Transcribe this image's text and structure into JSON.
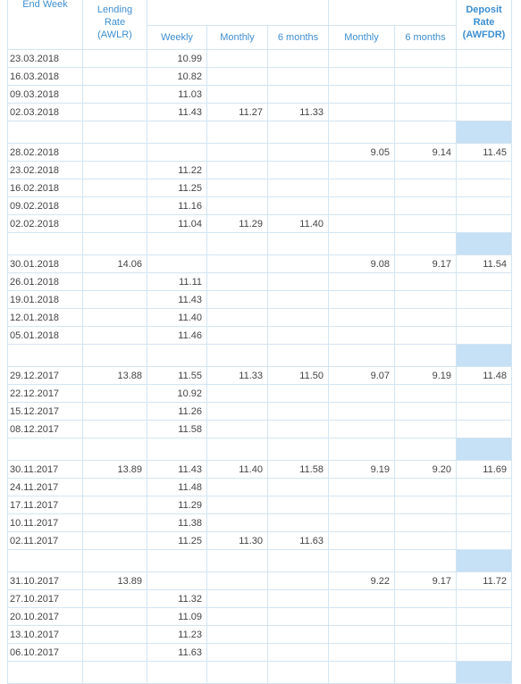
{
  "table": {
    "header": [
      "End Week",
      "Lending Rate (AWLR)",
      "Weekly",
      "Monthly",
      "6 months",
      "Monthly",
      "6 months",
      "Deposit Rate (AWFDR)"
    ],
    "groups": [
      {
        "rows": [
          [
            "23.03.2018",
            null,
            "10.99",
            null,
            null,
            null,
            null,
            null
          ],
          [
            "16.03.2018",
            null,
            "10.82",
            null,
            null,
            null,
            null,
            null
          ],
          [
            "09.03.2018",
            null,
            "11.03",
            null,
            null,
            null,
            null,
            null
          ],
          [
            "02.03.2018",
            null,
            "11.43",
            "11.27",
            "11.33",
            null,
            null,
            null
          ]
        ]
      },
      {
        "rows": [
          [
            "28.02.2018",
            null,
            null,
            null,
            null,
            "9.05",
            "9.14",
            "11.45"
          ],
          [
            "23.02.2018",
            null,
            "11.22",
            null,
            null,
            null,
            null,
            null
          ],
          [
            "16.02.2018",
            null,
            "11.25",
            null,
            null,
            null,
            null,
            null
          ],
          [
            "09.02.2018",
            null,
            "11.16",
            null,
            null,
            null,
            null,
            null
          ],
          [
            "02.02.2018",
            null,
            "11.04",
            "11.29",
            "11.40",
            null,
            null,
            null
          ]
        ]
      },
      {
        "rows": [
          [
            "30.01.2018",
            "14.06",
            null,
            null,
            null,
            "9.08",
            "9.17",
            "11.54"
          ],
          [
            "26.01.2018",
            null,
            "11.11",
            null,
            null,
            null,
            null,
            null
          ],
          [
            "19.01.2018",
            null,
            "11.43",
            null,
            null,
            null,
            null,
            null
          ],
          [
            "12.01.2018",
            null,
            "11.40",
            null,
            null,
            null,
            null,
            null
          ],
          [
            "05.01.2018",
            null,
            "11.46",
            null,
            null,
            null,
            null,
            null
          ]
        ]
      },
      {
        "rows": [
          [
            "29.12.2017",
            "13.88",
            "11.55",
            "11.33",
            "11.50",
            "9.07",
            "9.19",
            "11.48"
          ],
          [
            "22.12.2017",
            null,
            "10.92",
            null,
            null,
            null,
            null,
            null
          ],
          [
            "15.12.2017",
            null,
            "11.26",
            null,
            null,
            null,
            null,
            null
          ],
          [
            "08.12.2017",
            null,
            "11.58",
            null,
            null,
            null,
            null,
            null
          ]
        ]
      },
      {
        "rows": [
          [
            "30.11.2017",
            "13.89",
            "11.43",
            "11.40",
            "11.58",
            "9.19",
            "9.20",
            "11.69"
          ],
          [
            "24.11.2017",
            null,
            "11.48",
            null,
            null,
            null,
            null,
            null
          ],
          [
            "17.11.2017",
            null,
            "11.29",
            null,
            null,
            null,
            null,
            null
          ],
          [
            "10.11.2017",
            null,
            "11.38",
            null,
            null,
            null,
            null,
            null
          ],
          [
            "02.11.2017",
            null,
            "11.25",
            "11.30",
            "11.63",
            null,
            null,
            null
          ]
        ]
      },
      {
        "rows": [
          [
            "31.10.2017",
            "13.89",
            null,
            null,
            null,
            "9.22",
            "9.17",
            "11.72"
          ],
          [
            "27.10.2017",
            null,
            "11.32",
            null,
            null,
            null,
            null,
            null
          ],
          [
            "20.10.2017",
            null,
            "11.09",
            null,
            null,
            null,
            null,
            null
          ],
          [
            "13.10.2017",
            null,
            "11.23",
            null,
            null,
            null,
            null,
            null
          ],
          [
            "06.10.2017",
            null,
            "11.63",
            null,
            null,
            null,
            null,
            null
          ]
        ]
      }
    ]
  }
}
